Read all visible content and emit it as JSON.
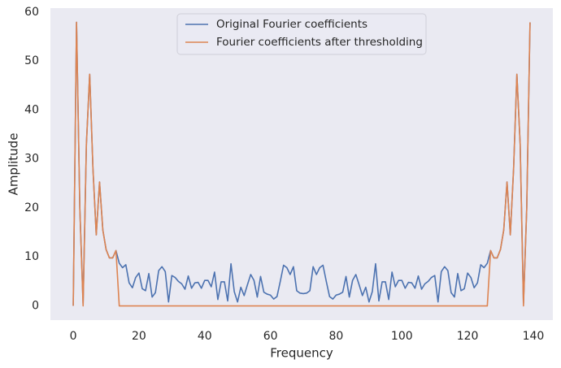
{
  "chart_data": {
    "type": "line",
    "xlabel": "Frequency",
    "ylabel": "Amplitude",
    "x": [
      0,
      1,
      2,
      3,
      4,
      5,
      6,
      7,
      8,
      9,
      10,
      11,
      12,
      13,
      14,
      15,
      16,
      17,
      18,
      19,
      20,
      21,
      22,
      23,
      24,
      25,
      26,
      27,
      28,
      29,
      30,
      31,
      32,
      33,
      34,
      35,
      36,
      37,
      38,
      39,
      40,
      41,
      42,
      43,
      44,
      45,
      46,
      47,
      48,
      49,
      50,
      51,
      52,
      53,
      54,
      55,
      56,
      57,
      58,
      59,
      60,
      61,
      62,
      63,
      64,
      65,
      66,
      67,
      68,
      69,
      70,
      71,
      72,
      73,
      74,
      75,
      76,
      77,
      78,
      79,
      80,
      81,
      82,
      83,
      84,
      85,
      86,
      87,
      88,
      89,
      90,
      91,
      92,
      93,
      94,
      95,
      96,
      97,
      98,
      99,
      100,
      101,
      102,
      103,
      104,
      105,
      106,
      107,
      108,
      109,
      110,
      111,
      112,
      113,
      114,
      115,
      116,
      117,
      118,
      119,
      120,
      121,
      122,
      123,
      124,
      125,
      126,
      127,
      128,
      129,
      130,
      131,
      132,
      133,
      134,
      135,
      136,
      137,
      138,
      139
    ],
    "series": [
      {
        "name": "Original Fourier coefficients",
        "color": "#4c72b0",
        "values": [
          0,
          57.9,
          20,
          0.5,
          33,
          47.3,
          28,
          14.5,
          25.3,
          15.5,
          11.5,
          9.8,
          9.8,
          11.3,
          8.7,
          7.8,
          8.4,
          4.7,
          3.7,
          5.8,
          6.7,
          3.5,
          3.1,
          6.6,
          1.8,
          2.7,
          7.2,
          8.0,
          7.0,
          0.8,
          6.2,
          5.8,
          5.0,
          4.5,
          3.4,
          6.1,
          3.6,
          4.7,
          4.8,
          3.6,
          5.2,
          5.2,
          3.9,
          6.9,
          1.3,
          4.9,
          4.9,
          1.0,
          8.6,
          2.9,
          0.8,
          3.8,
          2.1,
          4.3,
          6.4,
          5.2,
          1.8,
          6.0,
          2.8,
          2.4,
          2.2,
          1.4,
          1.9,
          5.0,
          8.3,
          7.8,
          6.4,
          8.0,
          3.1,
          2.6,
          2.5,
          2.6,
          3.1,
          8.0,
          6.4,
          7.8,
          8.3,
          5.0,
          1.9,
          1.4,
          2.2,
          2.4,
          2.8,
          6.0,
          1.8,
          5.2,
          6.4,
          4.3,
          2.1,
          3.8,
          0.8,
          2.9,
          8.6,
          1.0,
          4.9,
          4.9,
          1.3,
          6.9,
          3.9,
          5.2,
          5.2,
          3.6,
          4.8,
          4.7,
          3.6,
          6.1,
          3.4,
          4.5,
          5.0,
          5.8,
          6.2,
          0.8,
          7.0,
          8.0,
          7.2,
          2.7,
          1.8,
          6.6,
          3.1,
          3.5,
          6.7,
          5.8,
          3.7,
          4.7,
          8.4,
          7.8,
          8.7,
          11.3,
          9.8,
          9.8,
          11.5,
          15.5,
          25.3,
          14.5,
          28,
          47.3,
          33,
          0.5,
          20,
          57.9
        ]
      },
      {
        "name": "Fourier coefficients after thresholding",
        "color": "#dd8452",
        "values": [
          0,
          57.9,
          20,
          0,
          33,
          47.3,
          28,
          14.5,
          25.3,
          15.5,
          11.5,
          9.8,
          9.8,
          11.3,
          0,
          0,
          0,
          0,
          0,
          0,
          0,
          0,
          0,
          0,
          0,
          0,
          0,
          0,
          0,
          0,
          0,
          0,
          0,
          0,
          0,
          0,
          0,
          0,
          0,
          0,
          0,
          0,
          0,
          0,
          0,
          0,
          0,
          0,
          0,
          0,
          0,
          0,
          0,
          0,
          0,
          0,
          0,
          0,
          0,
          0,
          0,
          0,
          0,
          0,
          0,
          0,
          0,
          0,
          0,
          0,
          0,
          0,
          0,
          0,
          0,
          0,
          0,
          0,
          0,
          0,
          0,
          0,
          0,
          0,
          0,
          0,
          0,
          0,
          0,
          0,
          0,
          0,
          0,
          0,
          0,
          0,
          0,
          0,
          0,
          0,
          0,
          0,
          0,
          0,
          0,
          0,
          0,
          0,
          0,
          0,
          0,
          0,
          0,
          0,
          0,
          0,
          0,
          0,
          0,
          0,
          0,
          0,
          0,
          0,
          0,
          0,
          0,
          11.3,
          9.8,
          9.8,
          11.5,
          15.5,
          25.3,
          14.5,
          28,
          47.3,
          33,
          0,
          20,
          57.9
        ]
      }
    ],
    "xlim": [
      -6.95,
      145.95
    ],
    "ylim": [
      -2.9,
      60.8
    ],
    "xticks": [
      0,
      20,
      40,
      60,
      80,
      100,
      120,
      140
    ],
    "yticks": [
      0,
      10,
      20,
      30,
      40,
      50,
      60
    ],
    "grid": false,
    "legend": "upper center",
    "background": "#eaeaf2"
  }
}
